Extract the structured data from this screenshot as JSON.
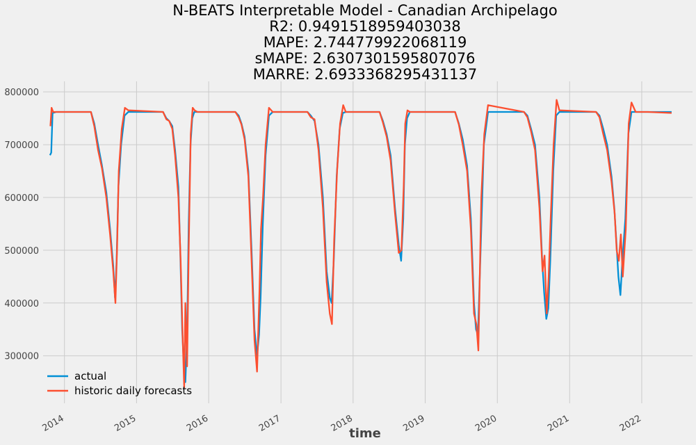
{
  "chart_data": {
    "type": "line",
    "title_lines": [
      "N-BEATS Interpretable Model - Canadian Archipelago",
      "R2: 0.9491518959403038",
      "MAPE: 2.744779922068119",
      "sMAPE: 2.6307301595807076",
      "MARRE: 2.6933368295431137"
    ],
    "xlabel": "time",
    "ylabel": "",
    "x_ticks": [
      "2014",
      "2015",
      "2016",
      "2017",
      "2018",
      "2019",
      "2020",
      "2021",
      "2022"
    ],
    "y_ticks": [
      300000,
      400000,
      500000,
      600000,
      700000,
      800000
    ],
    "y_tick_labels": [
      "300000",
      "400000",
      "500000",
      "600000",
      "700000",
      "800000"
    ],
    "xlim": [
      "2013-09-15",
      "2022-09-15"
    ],
    "ylim": [
      210000,
      820000
    ],
    "grid": true,
    "legend_position": "lower-left",
    "colors": {
      "actual": "#008fd5",
      "forecast": "#fc4f30",
      "background": "#f0f0f0"
    },
    "series": [
      {
        "name": "actual",
        "x": [
          "2013-10-20",
          "2013-10-26",
          "2013-11-02",
          "2013-11-20",
          "2014-05-15",
          "2014-06-01",
          "2014-06-20",
          "2014-07-10",
          "2014-08-01",
          "2014-08-20",
          "2014-09-05",
          "2014-09-14",
          "2014-09-22",
          "2014-10-01",
          "2014-10-15",
          "2014-11-01",
          "2014-11-20",
          "2015-05-15",
          "2015-06-01",
          "2015-06-15",
          "2015-07-01",
          "2015-07-15",
          "2015-08-01",
          "2015-08-10",
          "2015-08-20",
          "2015-08-28",
          "2015-09-05",
          "2015-09-14",
          "2015-09-22",
          "2015-10-01",
          "2015-10-10",
          "2015-10-20",
          "2015-11-05",
          "2016-05-15",
          "2016-06-01",
          "2016-06-15",
          "2016-07-01",
          "2016-07-20",
          "2016-08-05",
          "2016-08-20",
          "2016-09-02",
          "2016-09-12",
          "2016-09-20",
          "2016-10-01",
          "2016-10-15",
          "2016-11-01",
          "2016-11-20",
          "2017-05-15",
          "2017-06-01",
          "2017-06-20",
          "2017-07-10",
          "2017-08-01",
          "2017-08-20",
          "2017-09-05",
          "2017-09-14",
          "2017-09-25",
          "2017-10-10",
          "2017-10-25",
          "2017-11-10",
          "2017-11-25",
          "2018-05-15",
          "2018-06-01",
          "2018-06-20",
          "2018-07-10",
          "2018-08-01",
          "2018-08-20",
          "2018-09-01",
          "2018-09-12",
          "2018-09-20",
          "2018-10-01",
          "2018-10-15",
          "2018-11-01",
          "2019-06-01",
          "2019-06-20",
          "2019-07-10",
          "2019-08-01",
          "2019-08-20",
          "2019-09-05",
          "2019-09-15",
          "2019-09-25",
          "2019-10-10",
          "2019-10-25",
          "2019-11-15",
          "2020-05-15",
          "2020-06-01",
          "2020-06-20",
          "2020-07-10",
          "2020-08-01",
          "2020-08-15",
          "2020-08-25",
          "2020-09-05",
          "2020-09-15",
          "2020-09-25",
          "2020-10-10",
          "2020-10-25",
          "2020-11-10",
          "2021-05-15",
          "2021-06-01",
          "2021-06-20",
          "2021-07-10",
          "2021-08-01",
          "2021-08-15",
          "2021-08-25",
          "2021-09-05",
          "2021-09-15",
          "2021-09-25",
          "2021-10-10",
          "2021-10-25",
          "2021-11-10",
          "2021-12-01",
          "2022-02-01",
          "2022-06-01"
        ],
        "values": [
          680000,
          685000,
          760000,
          762000,
          762000,
          740000,
          700000,
          660000,
          610000,
          540000,
          470000,
          410000,
          480000,
          620000,
          700000,
          755000,
          762000,
          762000,
          750000,
          745000,
          735000,
          690000,
          620000,
          500000,
          350000,
          285000,
          250000,
          340000,
          550000,
          700000,
          750000,
          762000,
          762000,
          762000,
          755000,
          740000,
          715000,
          650000,
          500000,
          350000,
          300000,
          340000,
          410000,
          550000,
          680000,
          755000,
          762000,
          762000,
          755000,
          745000,
          700000,
          600000,
          460000,
          410000,
          400000,
          480000,
          640000,
          730000,
          760000,
          762000,
          762000,
          745000,
          720000,
          680000,
          580000,
          510000,
          480000,
          560000,
          700000,
          750000,
          762000,
          762000,
          762000,
          740000,
          710000,
          660000,
          560000,
          400000,
          350000,
          340000,
          520000,
          700000,
          762000,
          762000,
          755000,
          730000,
          700000,
          600000,
          480000,
          420000,
          370000,
          390000,
          480000,
          650000,
          755000,
          762000,
          762000,
          755000,
          730000,
          700000,
          640000,
          580000,
          520000,
          450000,
          415000,
          480000,
          560000,
          720000,
          762000,
          762000,
          762000,
          762000
        ]
      },
      {
        "name": "historic daily forecasts",
        "x": [
          "2013-10-22",
          "2013-10-28",
          "2013-11-05",
          "2013-11-25",
          "2014-05-15",
          "2014-06-01",
          "2014-06-20",
          "2014-07-10",
          "2014-08-01",
          "2014-08-20",
          "2014-09-05",
          "2014-09-16",
          "2014-09-24",
          "2014-10-03",
          "2014-10-18",
          "2014-11-03",
          "2014-11-20",
          "2015-05-15",
          "2015-06-01",
          "2015-06-15",
          "2015-07-01",
          "2015-07-15",
          "2015-08-01",
          "2015-08-12",
          "2015-08-22",
          "2015-08-30",
          "2015-09-05",
          "2015-09-14",
          "2015-09-22",
          "2015-10-02",
          "2015-10-12",
          "2015-10-22",
          "2015-11-05",
          "2016-05-15",
          "2016-06-01",
          "2016-06-15",
          "2016-07-01",
          "2016-07-20",
          "2016-08-05",
          "2016-08-20",
          "2016-09-02",
          "2016-09-14",
          "2016-09-22",
          "2016-10-02",
          "2016-10-15",
          "2016-11-01",
          "2016-11-20",
          "2017-05-15",
          "2017-06-01",
          "2017-06-20",
          "2017-07-10",
          "2017-08-01",
          "2017-08-20",
          "2017-09-05",
          "2017-09-16",
          "2017-09-27",
          "2017-10-12",
          "2017-10-27",
          "2017-11-12",
          "2017-11-25",
          "2018-05-15",
          "2018-06-01",
          "2018-06-20",
          "2018-07-10",
          "2018-08-01",
          "2018-08-20",
          "2018-09-03",
          "2018-09-14",
          "2018-09-22",
          "2018-10-03",
          "2018-10-15",
          "2018-11-01",
          "2019-06-01",
          "2019-06-20",
          "2019-07-10",
          "2019-08-01",
          "2019-08-20",
          "2019-09-05",
          "2019-09-17",
          "2019-09-27",
          "2019-10-12",
          "2019-10-27",
          "2019-11-15",
          "2020-05-15",
          "2020-06-01",
          "2020-06-20",
          "2020-07-10",
          "2020-08-01",
          "2020-08-17",
          "2020-08-27",
          "2020-09-07",
          "2020-09-17",
          "2020-09-27",
          "2020-10-12",
          "2020-10-27",
          "2020-11-10",
          "2021-05-15",
          "2021-06-01",
          "2021-06-20",
          "2021-07-10",
          "2021-08-01",
          "2021-08-17",
          "2021-08-27",
          "2021-09-07",
          "2021-09-17",
          "2021-09-27",
          "2021-10-12",
          "2021-10-27",
          "2021-11-10",
          "2021-12-01",
          "2022-02-01",
          "2022-06-01"
        ],
        "values": [
          735000,
          770000,
          762000,
          762000,
          762000,
          735000,
          690000,
          655000,
          600000,
          530000,
          460000,
          400000,
          500000,
          650000,
          730000,
          770000,
          765000,
          762000,
          748000,
          745000,
          730000,
          680000,
          600000,
          480000,
          340000,
          240000,
          400000,
          280000,
          500000,
          720000,
          770000,
          765000,
          762000,
          762000,
          752000,
          738000,
          710000,
          640000,
          480000,
          330000,
          270000,
          420000,
          540000,
          600000,
          700000,
          770000,
          762000,
          762000,
          752000,
          748000,
          690000,
          580000,
          440000,
          380000,
          360000,
          520000,
          650000,
          740000,
          775000,
          762000,
          762000,
          742000,
          715000,
          670000,
          570000,
          495000,
          500000,
          620000,
          740000,
          765000,
          762000,
          762000,
          762000,
          738000,
          700000,
          650000,
          540000,
          380000,
          360000,
          310000,
          600000,
          720000,
          775000,
          762000,
          752000,
          725000,
          690000,
          580000,
          460000,
          490000,
          380000,
          450000,
          560000,
          700000,
          785000,
          765000,
          762000,
          752000,
          720000,
          690000,
          630000,
          570000,
          500000,
          480000,
          530000,
          450000,
          540000,
          740000,
          780000,
          762000,
          762000,
          760000
        ]
      }
    ]
  }
}
